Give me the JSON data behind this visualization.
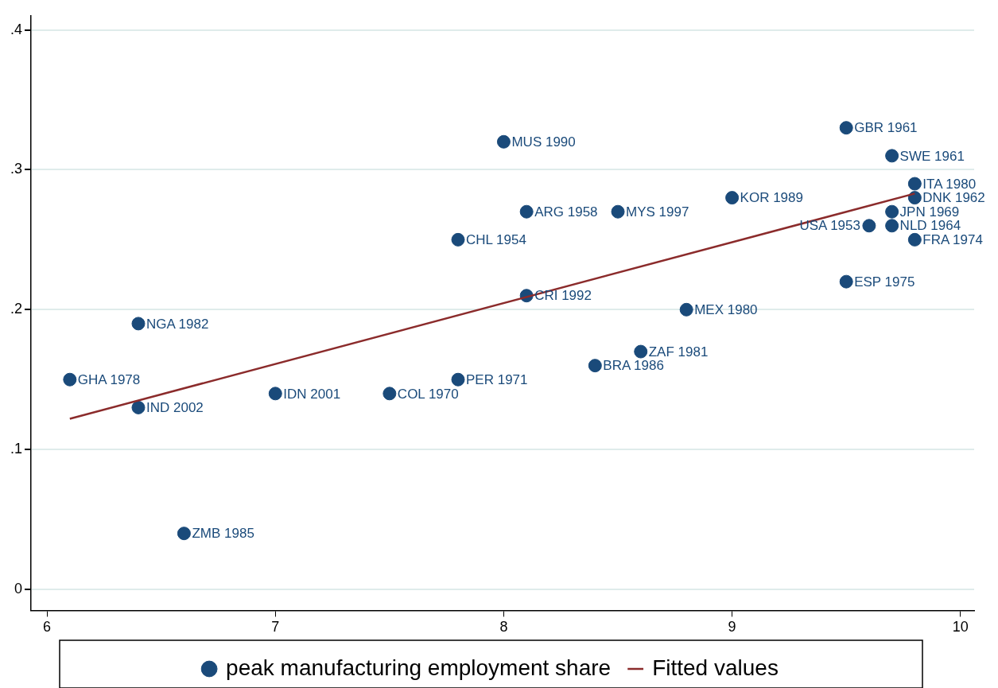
{
  "chart_data": {
    "type": "scatter",
    "legend": "bottom",
    "grid": "y",
    "marker": "circle",
    "xlim": [
      5.93,
      10.06
    ],
    "xticks": [
      6,
      7,
      8,
      9,
      10
    ],
    "ylim": [
      -0.015,
      0.41
    ],
    "yticks": [
      {
        "value": 0,
        "label": "0"
      },
      {
        "value": 0.1,
        "label": ".1"
      },
      {
        "value": 0.2,
        "label": ".2"
      },
      {
        "value": 0.3,
        "label": ".3"
      },
      {
        "value": 0.4,
        "label": ".4"
      }
    ],
    "series": [
      {
        "name": "peak manufacturing employment share",
        "color": "#1a4a7a",
        "x": [
          6.1,
          6.4,
          6.4,
          6.6,
          7.0,
          7.5,
          7.8,
          7.8,
          8.0,
          8.1,
          8.1,
          8.5,
          8.4,
          8.6,
          8.8,
          9.0,
          9.5,
          9.5,
          9.7,
          9.8,
          9.8,
          9.7,
          9.6,
          9.7,
          9.8
        ],
        "values": [
          0.15,
          0.13,
          0.19,
          0.04,
          0.14,
          0.14,
          0.15,
          0.25,
          0.32,
          0.27,
          0.21,
          0.27,
          0.16,
          0.17,
          0.2,
          0.28,
          0.33,
          0.22,
          0.31,
          0.29,
          0.28,
          0.27,
          0.26,
          0.26,
          0.25
        ]
      },
      {
        "name": "Fitted values",
        "type": "line",
        "marker": "none",
        "color": "#8b2b2b",
        "x": [
          6.1,
          9.8
        ],
        "values": [
          0.122,
          0.283
        ]
      }
    ],
    "annotations": [
      {
        "text": "GHA 1978",
        "x": 6.1,
        "y": 0.15
      },
      {
        "text": "IND 2002",
        "x": 6.4,
        "y": 0.13
      },
      {
        "text": "NGA 1982",
        "x": 6.4,
        "y": 0.19
      },
      {
        "text": "ZMB 1985",
        "x": 6.6,
        "y": 0.04
      },
      {
        "text": "IDN 2001",
        "x": 7.0,
        "y": 0.14
      },
      {
        "text": "COL 1970",
        "x": 7.5,
        "y": 0.14
      },
      {
        "text": "PER 1971",
        "x": 7.8,
        "y": 0.15
      },
      {
        "text": "CHL 1954",
        "x": 7.8,
        "y": 0.25
      },
      {
        "text": "MUS 1990",
        "x": 8.0,
        "y": 0.32
      },
      {
        "text": "ARG 1958",
        "x": 8.1,
        "y": 0.27
      },
      {
        "text": "CRI 1992",
        "x": 8.1,
        "y": 0.21
      },
      {
        "text": "MYS 1997",
        "x": 8.5,
        "y": 0.27
      },
      {
        "text": "BRA 1986",
        "x": 8.4,
        "y": 0.16
      },
      {
        "text": "ZAF 1981",
        "x": 8.6,
        "y": 0.17
      },
      {
        "text": "MEX 1980",
        "x": 8.8,
        "y": 0.2
      },
      {
        "text": "KOR 1989",
        "x": 9.0,
        "y": 0.28
      },
      {
        "text": "GBR 1961",
        "x": 9.5,
        "y": 0.33
      },
      {
        "text": "ESP 1975",
        "x": 9.5,
        "y": 0.22
      },
      {
        "text": "SWE 1961",
        "x": 9.7,
        "y": 0.31
      },
      {
        "text": "ITA 1980",
        "x": 9.8,
        "y": 0.29
      },
      {
        "text": "DNK 1962",
        "x": 9.8,
        "y": 0.28
      },
      {
        "text": "JPN 1969",
        "x": 9.7,
        "y": 0.27
      },
      {
        "text": "USA 1953",
        "x": 9.6,
        "y": 0.26
      },
      {
        "text": "NLD 1964",
        "x": 9.7,
        "y": 0.26
      },
      {
        "text": "FRA 1974",
        "x": 9.8,
        "y": 0.25
      }
    ]
  }
}
